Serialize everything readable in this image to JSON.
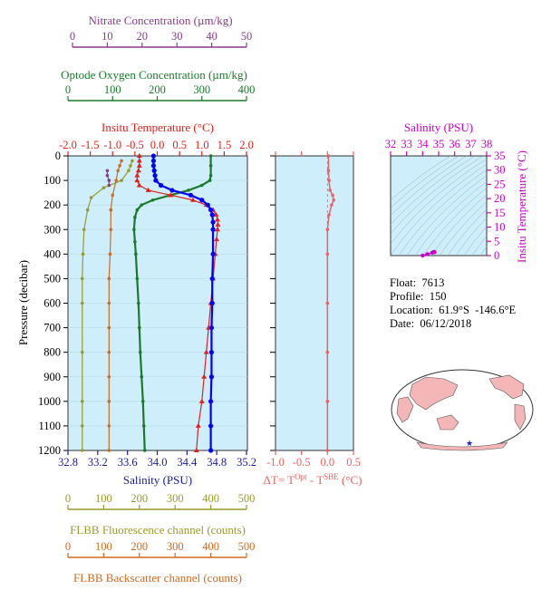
{
  "colors": {
    "nitrate": "#8b3a8b",
    "oxygen": "#1a7a2a",
    "temperature": "#e0201a",
    "salinity": "#1a1aa0",
    "salinity_points": "#0000ff",
    "fluorescence": "#9a9a2a",
    "backscatter": "#d2691e",
    "delta_t": "#f06060",
    "ts_axis": "#cc00cc",
    "panel_bg": "#cdeefa",
    "land": "#f4b6b6"
  },
  "axes": {
    "nitrate": {
      "label": "Nitrate Concentration (µm/kg)",
      "ticks": [
        "0",
        "10",
        "20",
        "30",
        "40",
        "50"
      ]
    },
    "oxygen": {
      "label": "Optode Oxygen Concentration (µm/kg)",
      "ticks": [
        "0",
        "100",
        "200",
        "300",
        "400"
      ]
    },
    "temperature": {
      "label": "Insitu Temperature (°C)",
      "ticks": [
        "-2.0",
        "-1.5",
        "-1.0",
        "-0.5",
        "0.0",
        "0.5",
        "1.0",
        "1.5",
        "2.0"
      ]
    },
    "salinity": {
      "label": "Salinity (PSU)",
      "ticks": [
        "32.8",
        "33.2",
        "33.6",
        "34.0",
        "34.4",
        "34.8",
        "35.2"
      ]
    },
    "pressure": {
      "label": "Pressure (decibar)",
      "ticks": [
        "0",
        "100",
        "200",
        "300",
        "400",
        "500",
        "600",
        "700",
        "800",
        "900",
        "1000",
        "1100",
        "1200"
      ]
    },
    "fluorescence": {
      "label": "FLBB Fluorescence channel (counts)",
      "ticks": [
        "0",
        "100",
        "200",
        "300",
        "400",
        "500"
      ]
    },
    "backscatter": {
      "label": "FLBB Backscatter channel (counts)",
      "ticks": [
        "0",
        "100",
        "200",
        "300",
        "400",
        "500"
      ]
    },
    "delta_t": {
      "label_prefix": "ΔT= T",
      "label_sup1": "Opt",
      "label_mid": " - T",
      "label_sup2": "SBE",
      "label_suffix": " (°C)",
      "ticks": [
        "-1.0",
        "-0.5",
        "0.0",
        "0.5"
      ]
    },
    "ts_salinity": {
      "label": "Salinity (PSU)",
      "ticks": [
        "32",
        "33",
        "34",
        "35",
        "36",
        "37",
        "38"
      ]
    },
    "ts_temperature": {
      "label": "Insitu Temperature (°C)",
      "ticks": [
        "0",
        "5",
        "10",
        "15",
        "20",
        "25",
        "30",
        "35"
      ]
    }
  },
  "info": {
    "float": "Float:  7613",
    "profile": "Profile:  150",
    "location": "Location:  61.9°S  -146.6°E",
    "date": "Date:  06/12/2018"
  },
  "chart_data": {
    "type": "line",
    "y_axis": "pressure_dbar",
    "ylim": [
      1200,
      0
    ],
    "series": [
      {
        "name": "Temperature",
        "units": "°C",
        "xlim": [
          -2.0,
          2.0
        ],
        "points": [
          [
            -0.4,
            0
          ],
          [
            -0.4,
            20
          ],
          [
            -0.4,
            40
          ],
          [
            -0.42,
            60
          ],
          [
            -0.45,
            80
          ],
          [
            -0.45,
            100
          ],
          [
            -0.4,
            120
          ],
          [
            -0.2,
            140
          ],
          [
            0.3,
            160
          ],
          [
            0.8,
            180
          ],
          [
            1.1,
            200
          ],
          [
            1.25,
            220
          ],
          [
            1.32,
            240
          ],
          [
            1.35,
            260
          ],
          [
            1.36,
            280
          ],
          [
            1.35,
            300
          ],
          [
            1.33,
            340
          ],
          [
            1.3,
            400
          ],
          [
            1.25,
            500
          ],
          [
            1.2,
            600
          ],
          [
            1.15,
            700
          ],
          [
            1.1,
            800
          ],
          [
            1.05,
            900
          ],
          [
            1.0,
            1000
          ],
          [
            0.92,
            1100
          ],
          [
            0.88,
            1200
          ]
        ]
      },
      {
        "name": "Salinity",
        "units": "PSU",
        "xlim": [
          32.8,
          35.2
        ],
        "points": [
          [
            33.95,
            0
          ],
          [
            33.95,
            20
          ],
          [
            33.95,
            40
          ],
          [
            33.96,
            60
          ],
          [
            33.97,
            80
          ],
          [
            33.98,
            100
          ],
          [
            34.05,
            120
          ],
          [
            34.2,
            140
          ],
          [
            34.45,
            160
          ],
          [
            34.6,
            180
          ],
          [
            34.68,
            200
          ],
          [
            34.72,
            220
          ],
          [
            34.74,
            240
          ],
          [
            34.75,
            270
          ],
          [
            34.75,
            300
          ],
          [
            34.75,
            400
          ],
          [
            34.74,
            500
          ],
          [
            34.74,
            600
          ],
          [
            34.73,
            700
          ],
          [
            34.73,
            800
          ],
          [
            34.73,
            900
          ],
          [
            34.72,
            1000
          ],
          [
            34.72,
            1100
          ],
          [
            34.72,
            1200
          ]
        ]
      },
      {
        "name": "Oxygen",
        "units": "µm/kg",
        "xlim": [
          0,
          400
        ],
        "points": [
          [
            320,
            0
          ],
          [
            320,
            40
          ],
          [
            320,
            80
          ],
          [
            318,
            100
          ],
          [
            300,
            120
          ],
          [
            270,
            140
          ],
          [
            230,
            160
          ],
          [
            190,
            180
          ],
          [
            165,
            200
          ],
          [
            155,
            220
          ],
          [
            150,
            250
          ],
          [
            148,
            300
          ],
          [
            150,
            350
          ],
          [
            152,
            400
          ],
          [
            155,
            500
          ],
          [
            158,
            600
          ],
          [
            160,
            700
          ],
          [
            162,
            800
          ],
          [
            165,
            900
          ],
          [
            168,
            1000
          ],
          [
            170,
            1100
          ],
          [
            172,
            1200
          ]
        ]
      },
      {
        "name": "Nitrate",
        "units": "µm/kg",
        "points": [
          [
            10,
            60
          ],
          [
            10,
            80
          ],
          [
            10.5,
            100
          ],
          [
            10.5,
            120
          ]
        ]
      },
      {
        "name": "Fluorescence",
        "units": "counts",
        "xlim": [
          0,
          500
        ],
        "points": [
          [
            180,
            20
          ],
          [
            175,
            40
          ],
          [
            170,
            60
          ],
          [
            150,
            100
          ],
          [
            100,
            130
          ],
          [
            65,
            170
          ],
          [
            55,
            220
          ],
          [
            45,
            300
          ],
          [
            42,
            400
          ],
          [
            40,
            500
          ],
          [
            40,
            600
          ],
          [
            40,
            800
          ],
          [
            40,
            1000
          ],
          [
            40,
            1100
          ],
          [
            40,
            1200
          ]
        ]
      },
      {
        "name": "Backscatter",
        "units": "counts",
        "xlim": [
          0,
          500
        ],
        "points": [
          [
            150,
            20
          ],
          [
            145,
            40
          ],
          [
            140,
            60
          ],
          [
            135,
            100
          ],
          [
            125,
            160
          ],
          [
            120,
            220
          ],
          [
            120,
            300
          ],
          [
            118,
            400
          ],
          [
            115,
            500
          ],
          [
            115,
            600
          ],
          [
            115,
            700
          ],
          [
            115,
            800
          ],
          [
            115,
            900
          ],
          [
            115,
            1000
          ],
          [
            115,
            1100
          ],
          [
            115,
            1200
          ]
        ]
      },
      {
        "name": "ΔT",
        "units": "°C",
        "xlim": [
          -1.0,
          0.5
        ],
        "points": [
          [
            0.02,
            0
          ],
          [
            0.02,
            60
          ],
          [
            0.03,
            100
          ],
          [
            0.05,
            140
          ],
          [
            0.1,
            160
          ],
          [
            0.12,
            180
          ],
          [
            0.08,
            200
          ],
          [
            0.03,
            240
          ],
          [
            0.0,
            300
          ],
          [
            0.0,
            400
          ],
          [
            0.0,
            600
          ],
          [
            0.0,
            800
          ],
          [
            0.0,
            1000
          ],
          [
            0.0,
            1200
          ]
        ]
      }
    ],
    "ts_plot": {
      "xlim": [
        32,
        38
      ],
      "ylim": [
        0,
        35
      ],
      "points": [
        [
          34.0,
          0.0
        ],
        [
          34.3,
          0.5
        ],
        [
          34.6,
          1.0
        ],
        [
          34.7,
          1.3
        ],
        [
          34.75,
          1.2
        ]
      ]
    }
  }
}
